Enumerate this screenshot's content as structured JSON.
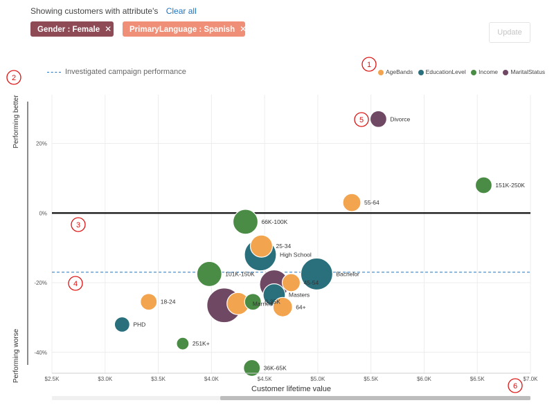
{
  "filter_bar": {
    "intro": "Showing customers with attribute's",
    "clear_all": "Clear all",
    "chips": [
      {
        "label": "Gender : Female",
        "color": "#8e4a55"
      },
      {
        "label": "PrimaryLanguage : Spanish",
        "color": "#f08f77"
      }
    ],
    "update_label": "Update"
  },
  "legend": {
    "investigated_label": "Investigated campaign performance",
    "items": [
      {
        "label": "AgeBands",
        "color": "#f2a44f"
      },
      {
        "label": "EducationLevel",
        "color": "#2a6f7c"
      },
      {
        "label": "Income",
        "color": "#4a8c45"
      },
      {
        "label": "MaritalStatus",
        "color": "#6f4863"
      }
    ]
  },
  "annotations": [
    "1",
    "2",
    "3",
    "4",
    "5",
    "6"
  ],
  "chart_data": {
    "type": "scatter",
    "subtype": "bubble",
    "xlabel": "Customer lifetime value",
    "ylabel_top": "Performing better",
    "ylabel_bottom": "Performing worse",
    "xlim": [
      2.5,
      7.0
    ],
    "ylim": [
      -46,
      34
    ],
    "x_ticks": [
      {
        "value": 2.5,
        "label": "$2.5K"
      },
      {
        "value": 3.0,
        "label": "$3.0K"
      },
      {
        "value": 3.5,
        "label": "$3.5K"
      },
      {
        "value": 4.0,
        "label": "$4.0K"
      },
      {
        "value": 4.5,
        "label": "$4.5K"
      },
      {
        "value": 5.0,
        "label": "$5.0K"
      },
      {
        "value": 5.5,
        "label": "$5.5K"
      },
      {
        "value": 6.0,
        "label": "$6.0K"
      },
      {
        "value": 6.5,
        "label": "$6.5K"
      },
      {
        "value": 7.0,
        "label": "$7.0K"
      }
    ],
    "y_ticks": [
      {
        "value": 20,
        "label": "20%"
      },
      {
        "value": 0,
        "label": "0%"
      },
      {
        "value": -20,
        "label": "-20%"
      },
      {
        "value": -40,
        "label": "-40%"
      }
    ],
    "investigated_value": -17,
    "points": [
      {
        "label": "Divorce",
        "group": "MaritalStatus",
        "x": 5.57,
        "y": 27,
        "size": 1.2
      },
      {
        "label": "151K-250K",
        "group": "Income",
        "x": 6.56,
        "y": 8,
        "size": 1.2
      },
      {
        "label": "55-64",
        "group": "AgeBands",
        "x": 5.32,
        "y": 3,
        "size": 1.3
      },
      {
        "label": "66K-100K",
        "group": "Income",
        "x": 4.32,
        "y": -2.5,
        "size": 1.8
      },
      {
        "label": "25-34",
        "group": "AgeBands",
        "x": 4.47,
        "y": -9.5,
        "size": 1.6
      },
      {
        "label": "High School",
        "group": "EducationLevel",
        "x": 4.46,
        "y": -12,
        "size": 2.3
      },
      {
        "label": "101K-150K",
        "group": "Income",
        "x": 3.98,
        "y": -17.5,
        "size": 1.8
      },
      {
        "label": "Bachelor",
        "group": "EducationLevel",
        "x": 4.99,
        "y": -17.5,
        "size": 2.3
      },
      {
        "label": "45-54",
        "group": "AgeBands",
        "x": 4.75,
        "y": -20,
        "size": 1.3
      },
      {
        "label": "",
        "group": "MaritalStatus",
        "x": 4.59,
        "y": -20.5,
        "size": 2.1
      },
      {
        "label": "Masters",
        "group": "EducationLevel",
        "x": 4.59,
        "y": -23.5,
        "size": 1.6
      },
      {
        "label": "0-35K",
        "group": "Income",
        "x": 4.39,
        "y": -25.5,
        "size": 1.2
      },
      {
        "label": "18-24",
        "group": "AgeBands",
        "x": 3.41,
        "y": -25.5,
        "size": 1.2
      },
      {
        "label": "",
        "group": "MaritalStatus",
        "x": 4.12,
        "y": -26.5,
        "size": 2.5
      },
      {
        "label": "Married",
        "group": "AgeBands",
        "x": 4.25,
        "y": -26,
        "size": 1.6
      },
      {
        "label": "64+",
        "group": "AgeBands",
        "x": 4.67,
        "y": -27,
        "size": 1.4
      },
      {
        "label": "PHD",
        "group": "EducationLevel",
        "x": 3.16,
        "y": -32,
        "size": 1.1
      },
      {
        "label": "251K+",
        "group": "Income",
        "x": 3.73,
        "y": -37.5,
        "size": 0.9
      },
      {
        "label": "36K-65K",
        "group": "Income",
        "x": 4.38,
        "y": -44.5,
        "size": 1.2
      }
    ]
  }
}
